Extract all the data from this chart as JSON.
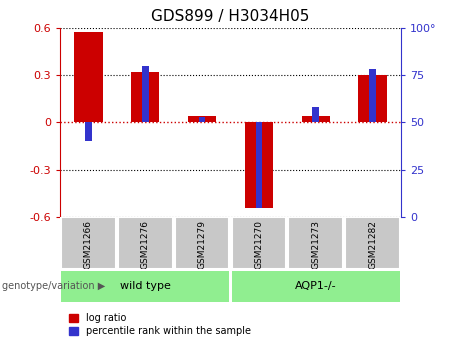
{
  "title": "GDS899 / H3034H05",
  "samples": [
    "GSM21266",
    "GSM21276",
    "GSM21279",
    "GSM21270",
    "GSM21273",
    "GSM21282"
  ],
  "group_labels": [
    "wild type",
    "AQP1-/-"
  ],
  "log_ratios": [
    0.57,
    0.32,
    0.04,
    -0.54,
    0.04,
    0.3
  ],
  "percentile_ranks": [
    40,
    80,
    53,
    5,
    58,
    78
  ],
  "ylim_left": [
    -0.6,
    0.6
  ],
  "ylim_right": [
    0,
    100
  ],
  "yticks_left": [
    -0.6,
    -0.3,
    0,
    0.3,
    0.6
  ],
  "yticks_right": [
    0,
    25,
    50,
    75,
    100
  ],
  "red_color": "#CC0000",
  "blue_color": "#3333CC",
  "background_color": "#FFFFFF",
  "group_box_color": "#90EE90",
  "sample_box_color": "#C8C8C8",
  "title_fontsize": 11,
  "tick_fontsize": 8,
  "legend_label_red": "log ratio",
  "legend_label_blue": "percentile rank within the sample",
  "genotype_label": "genotype/variation"
}
